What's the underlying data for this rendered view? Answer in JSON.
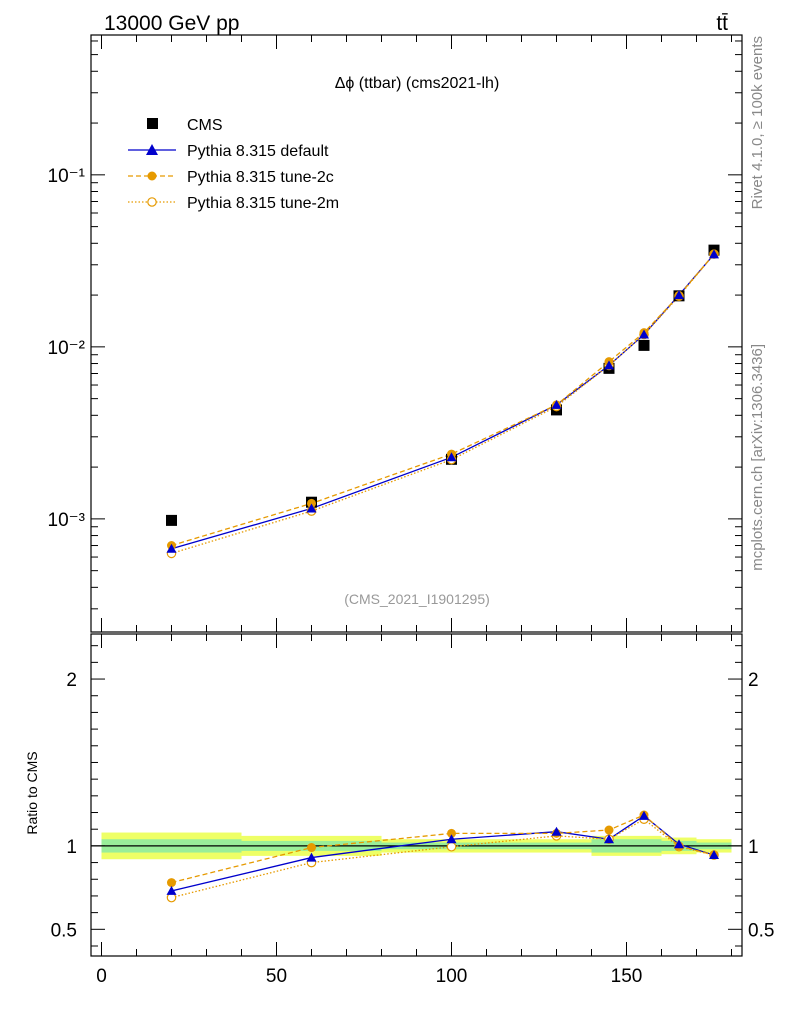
{
  "header": {
    "beam": "13000 GeV pp",
    "process_label": "tt̄",
    "side_label_top": "Rivet 4.1.0, ≥ 100k events",
    "side_label_bottom": "mcplots.cern.ch [arXiv:1306.3436]"
  },
  "colors": {
    "cms": "#000000",
    "default": "#0000cc",
    "tune2c": "#e69a00",
    "tune2m": "#e69a00",
    "band_inner": "#99ee99",
    "band_outer": "#eeff66"
  },
  "chart_data": [
    {
      "type": "line",
      "panel": "main",
      "title": "Δϕ (ttbar) (cms2021-lh)",
      "watermark": "(CMS_2021_I1901295)",
      "yscale": "log",
      "xlim": [
        -3,
        183
      ],
      "ylim": [
        0.00022,
        0.65
      ],
      "y_tick_labels": [
        "10⁻³",
        "10⁻²",
        "10⁻¹"
      ],
      "y_tick_values": [
        0.001,
        0.01,
        0.1
      ],
      "x": [
        20,
        60,
        100,
        130,
        145,
        155,
        165,
        175
      ],
      "series": [
        {
          "name": "CMS",
          "marker": "square",
          "values": [
            0.00098,
            0.00125,
            0.00222,
            0.0043,
            0.0075,
            0.0102,
            0.0198,
            0.0365
          ]
        },
        {
          "name": "Pythia 8.315 default",
          "marker": "triangle",
          "line": "solid",
          "values": [
            0.00067,
            0.00115,
            0.00228,
            0.0046,
            0.0078,
            0.0118,
            0.02,
            0.0345
          ]
        },
        {
          "name": "Pythia 8.315 tune-2c",
          "marker": "filled-circle",
          "line": "dashed",
          "values": [
            0.0007,
            0.00123,
            0.00238,
            0.0046,
            0.0082,
            0.0121,
            0.0199,
            0.0346
          ]
        },
        {
          "name": "Pythia 8.315 tune-2m",
          "marker": "open-circle",
          "line": "dotted",
          "values": [
            0.00063,
            0.00111,
            0.00221,
            0.0045,
            0.0078,
            0.0118,
            0.0197,
            0.0346
          ]
        }
      ]
    },
    {
      "type": "line",
      "panel": "ratio",
      "ylabel": "Ratio to CMS",
      "xlim": [
        -3,
        183
      ],
      "ylim": [
        0.34,
        2.27
      ],
      "x_tick_labels": [
        "0",
        "50",
        "100",
        "150"
      ],
      "x_tick_values": [
        0,
        50,
        100,
        150
      ],
      "y_tick_labels": [
        "0.5",
        "1",
        "2"
      ],
      "y_tick_values": [
        0.5,
        1,
        2
      ],
      "x": [
        20,
        60,
        100,
        130,
        145,
        155,
        165,
        175
      ],
      "band": {
        "bins": [
          [
            0,
            40
          ],
          [
            40,
            80
          ],
          [
            80,
            120
          ],
          [
            120,
            140
          ],
          [
            140,
            150
          ],
          [
            150,
            160
          ],
          [
            160,
            170
          ],
          [
            170,
            180
          ]
        ],
        "inner": [
          0.04,
          0.03,
          0.02,
          0.02,
          0.04,
          0.04,
          0.03,
          0.02
        ],
        "outer": [
          0.08,
          0.06,
          0.04,
          0.04,
          0.06,
          0.06,
          0.05,
          0.04
        ]
      },
      "series": [
        {
          "name": "Pythia 8.315 default",
          "values": [
            0.73,
            0.93,
            1.04,
            1.085,
            1.04,
            1.18,
            1.01,
            0.945
          ]
        },
        {
          "name": "Pythia 8.315 tune-2c",
          "values": [
            0.78,
            0.99,
            1.075,
            1.075,
            1.095,
            1.185,
            1.0,
            0.945
          ]
        },
        {
          "name": "Pythia 8.315 tune-2m",
          "values": [
            0.69,
            0.9,
            0.995,
            1.06,
            1.04,
            1.16,
            0.995,
            0.945
          ]
        }
      ]
    }
  ]
}
